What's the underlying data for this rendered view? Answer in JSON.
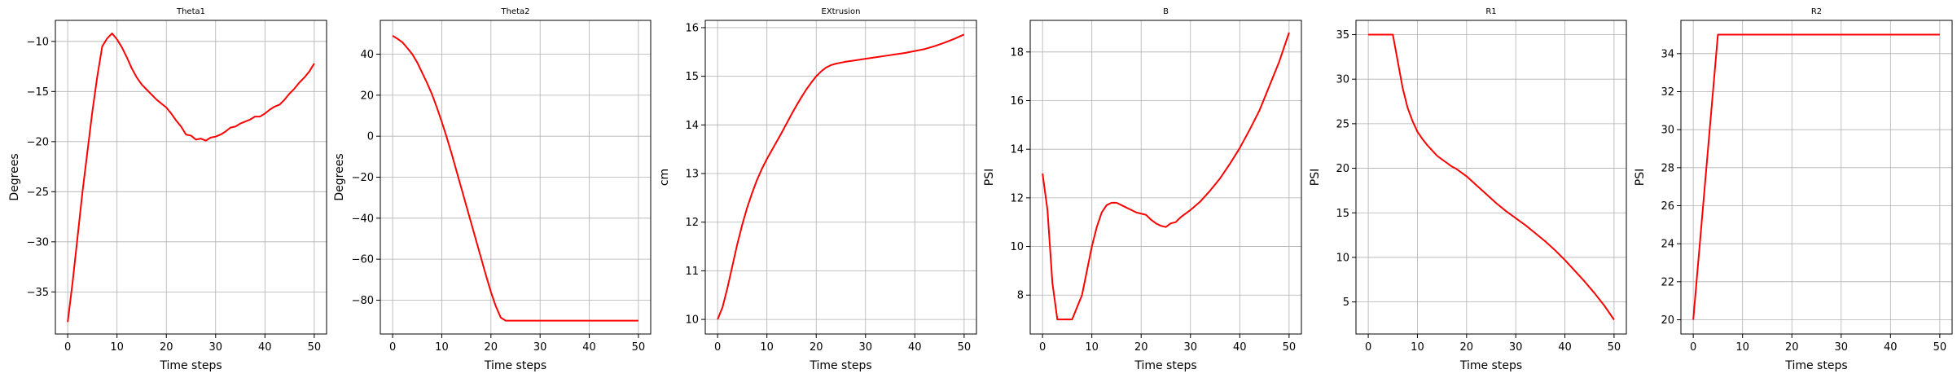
{
  "chart_data": [
    {
      "type": "line",
      "title": "Theta1",
      "xlabel": "Time steps",
      "ylabel": "Degrees",
      "xlim": [
        -2.5,
        52.5
      ],
      "ylim": [
        -39.2,
        -7.9
      ],
      "xticks": [
        0,
        10,
        20,
        30,
        40,
        50
      ],
      "yticks": [
        -35,
        -30,
        -25,
        -20,
        -15,
        -10
      ],
      "grid": true,
      "series": [
        {
          "color": "#ff0000",
          "x": [
            0,
            1,
            2,
            3,
            4,
            5,
            6,
            7,
            8,
            9,
            10,
            11,
            12,
            13,
            14,
            15,
            16,
            17,
            18,
            19,
            20,
            21,
            22,
            23,
            24,
            25,
            26,
            27,
            28,
            29,
            30,
            31,
            32,
            33,
            34,
            35,
            36,
            37,
            38,
            39,
            40,
            41,
            42,
            43,
            44,
            45,
            46,
            47,
            48,
            49,
            50
          ],
          "y": [
            -38,
            -34,
            -29.5,
            -25,
            -21,
            -17,
            -13.5,
            -10.5,
            -9.7,
            -9.2,
            -9.8,
            -10.6,
            -11.6,
            -12.7,
            -13.6,
            -14.3,
            -14.8,
            -15.3,
            -15.8,
            -16.2,
            -16.6,
            -17.2,
            -17.9,
            -18.5,
            -19.3,
            -19.4,
            -19.8,
            -19.7,
            -19.9,
            -19.6,
            -19.5,
            -19.3,
            -19.0,
            -18.6,
            -18.5,
            -18.2,
            -18.0,
            -17.8,
            -17.5,
            -17.5,
            -17.2,
            -16.8,
            -16.5,
            -16.3,
            -15.8,
            -15.2,
            -14.7,
            -14.1,
            -13.6,
            -13.0,
            -12.2
          ]
        }
      ]
    },
    {
      "type": "line",
      "title": "Theta2",
      "xlabel": "Time steps",
      "ylabel": "Degrees",
      "xlim": [
        -2.5,
        52.5
      ],
      "ylim": [
        -96.5,
        56.5
      ],
      "xticks": [
        0,
        10,
        20,
        30,
        40,
        50
      ],
      "yticks": [
        -80,
        -60,
        -40,
        -20,
        0,
        20,
        40
      ],
      "grid": true,
      "series": [
        {
          "color": "#ff0000",
          "x": [
            0,
            1,
            2,
            3,
            4,
            5,
            6,
            7,
            8,
            9,
            10,
            11,
            12,
            13,
            14,
            15,
            16,
            17,
            18,
            19,
            20,
            21,
            22,
            23,
            24,
            25,
            30,
            35,
            40,
            45,
            50
          ],
          "y": [
            49,
            47.5,
            45.8,
            43,
            40,
            36,
            31,
            26,
            20.5,
            14,
            7,
            -0.5,
            -8.5,
            -17,
            -25.5,
            -34,
            -42.5,
            -51,
            -59.5,
            -68,
            -76,
            -83,
            -88.5,
            -90,
            -90,
            -90,
            -90,
            -90,
            -90,
            -90,
            -90
          ]
        }
      ]
    },
    {
      "type": "line",
      "title": "EXtrusion",
      "xlabel": "Time steps",
      "ylabel": "cm",
      "xlim": [
        -2.5,
        52.5
      ],
      "ylim": [
        9.7,
        16.15
      ],
      "xticks": [
        0,
        10,
        20,
        30,
        40,
        50
      ],
      "yticks": [
        10,
        11,
        12,
        13,
        14,
        15,
        16
      ],
      "grid": true,
      "series": [
        {
          "color": "#ff0000",
          "x": [
            0,
            1,
            2,
            3,
            4,
            5,
            6,
            7,
            8,
            9,
            10,
            11,
            12,
            13,
            14,
            15,
            16,
            17,
            18,
            19,
            20,
            21,
            22,
            23,
            24,
            25,
            26,
            28,
            30,
            32,
            34,
            36,
            38,
            40,
            42,
            44,
            46,
            48,
            50
          ],
          "y": [
            10.0,
            10.25,
            10.65,
            11.1,
            11.55,
            11.95,
            12.3,
            12.6,
            12.87,
            13.1,
            13.3,
            13.48,
            13.66,
            13.84,
            14.03,
            14.22,
            14.4,
            14.57,
            14.73,
            14.87,
            15.0,
            15.1,
            15.18,
            15.23,
            15.26,
            15.28,
            15.3,
            15.33,
            15.36,
            15.39,
            15.42,
            15.45,
            15.48,
            15.52,
            15.56,
            15.62,
            15.69,
            15.77,
            15.86
          ]
        }
      ]
    },
    {
      "type": "line",
      "title": "B",
      "xlabel": "Time steps",
      "ylabel": "PSI",
      "xlim": [
        -2.5,
        52.5
      ],
      "ylim": [
        6.4,
        19.3
      ],
      "xticks": [
        0,
        10,
        20,
        30,
        40,
        50
      ],
      "yticks": [
        8,
        10,
        12,
        14,
        16,
        18
      ],
      "grid": true,
      "series": [
        {
          "color": "#ff0000",
          "x": [
            0,
            1,
            2,
            3,
            4,
            5,
            6,
            7,
            8,
            9,
            10,
            11,
            12,
            13,
            14,
            15,
            16,
            17,
            18,
            19,
            20,
            21,
            22,
            23,
            24,
            25,
            26,
            27,
            28,
            30,
            32,
            34,
            36,
            38,
            40,
            42,
            44,
            46,
            48,
            50
          ],
          "y": [
            13.0,
            11.5,
            8.5,
            7.0,
            7.0,
            7.0,
            7.0,
            7.5,
            8.0,
            9.0,
            10.0,
            10.8,
            11.4,
            11.7,
            11.8,
            11.8,
            11.7,
            11.6,
            11.5,
            11.4,
            11.35,
            11.3,
            11.1,
            10.95,
            10.85,
            10.8,
            10.95,
            11.0,
            11.2,
            11.5,
            11.85,
            12.3,
            12.8,
            13.4,
            14.05,
            14.8,
            15.6,
            16.6,
            17.6,
            18.8
          ]
        }
      ]
    },
    {
      "type": "line",
      "title": "R1",
      "xlabel": "Time steps",
      "ylabel": "PSI",
      "xlim": [
        -2.5,
        52.5
      ],
      "ylim": [
        1.4,
        36.6
      ],
      "xticks": [
        0,
        10,
        20,
        30,
        40,
        50
      ],
      "yticks": [
        5,
        10,
        15,
        20,
        25,
        30,
        35
      ],
      "grid": true,
      "series": [
        {
          "color": "#ff0000",
          "x": [
            0,
            1,
            2,
            3,
            4,
            5,
            6,
            7,
            8,
            9,
            10,
            11,
            12,
            13,
            14,
            15,
            16,
            17,
            18,
            19,
            20,
            22,
            24,
            26,
            28,
            30,
            32,
            34,
            36,
            38,
            40,
            42,
            44,
            46,
            48,
            50
          ],
          "y": [
            35,
            35,
            35,
            35,
            35,
            35,
            32,
            29,
            26.8,
            25.3,
            24.1,
            23.3,
            22.6,
            22.0,
            21.4,
            21.0,
            20.6,
            20.2,
            19.9,
            19.5,
            19.1,
            18.1,
            17.1,
            16.1,
            15.2,
            14.4,
            13.6,
            12.7,
            11.8,
            10.8,
            9.7,
            8.5,
            7.3,
            6.0,
            4.6,
            3.0
          ]
        }
      ]
    },
    {
      "type": "line",
      "title": "R2",
      "xlabel": "Time steps",
      "ylabel": "PSI",
      "xlim": [
        -2.5,
        52.5
      ],
      "ylim": [
        19.25,
        35.75
      ],
      "xticks": [
        0,
        10,
        20,
        30,
        40,
        50
      ],
      "yticks": [
        20,
        22,
        24,
        26,
        28,
        30,
        32,
        34
      ],
      "grid": true,
      "series": [
        {
          "color": "#ff0000",
          "x": [
            0,
            5,
            50
          ],
          "y": [
            20,
            35,
            35
          ]
        }
      ]
    }
  ]
}
